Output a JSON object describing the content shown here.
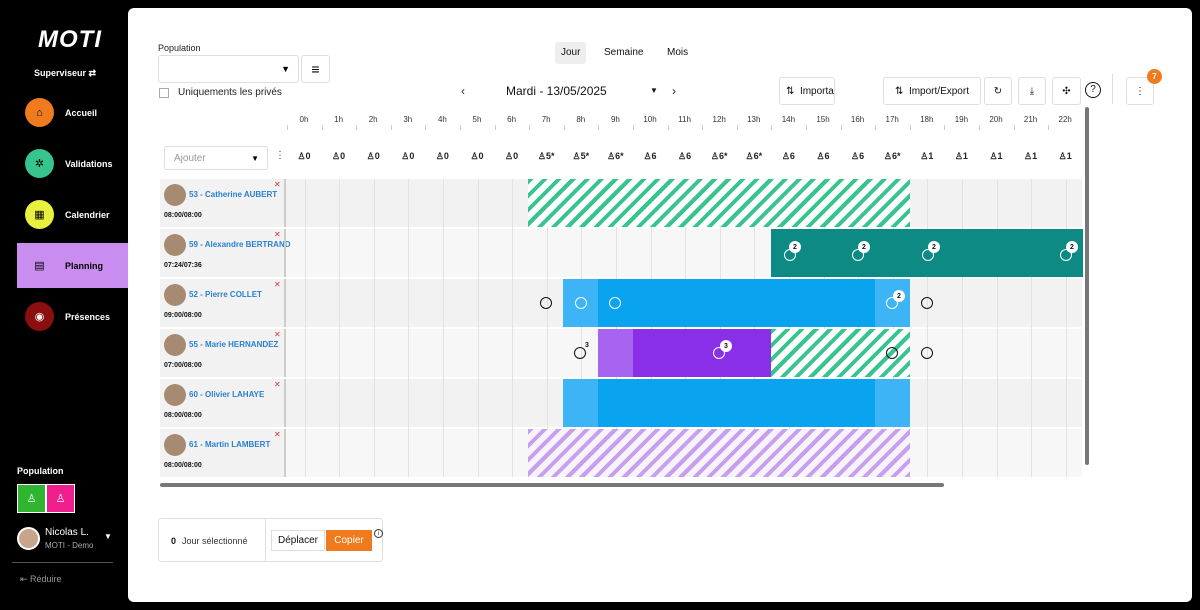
{
  "sidebar": {
    "logo": "MOTI",
    "role": "Superviseur",
    "items": [
      {
        "label": "Accueil",
        "color": "#f07b1f",
        "icon": "home-icon"
      },
      {
        "label": "Validations",
        "color": "#37c48f",
        "icon": "validations-icon"
      },
      {
        "label": "Calendrier",
        "color": "#e8f040",
        "icon": "calendar-icon"
      },
      {
        "label": "Planning",
        "color": "#c98df0",
        "icon": "planning-icon"
      },
      {
        "label": "Présences",
        "color": "#8b0f0f",
        "icon": "eye-icon"
      }
    ],
    "population_label": "Population",
    "user_name": "Nicolas L.",
    "user_org": "MOTI - Demo",
    "reduce_label": "Réduire"
  },
  "toolbar": {
    "population_label": "Population",
    "private_only_label": "Uniquements les privés",
    "views": [
      "Jour",
      "Semaine",
      "Mois"
    ],
    "date": "Mardi - 13/05/2025",
    "import_label": "Importa",
    "import_export_label": "Import/Export",
    "notification_count": "7",
    "add_placeholder": "Ajouter"
  },
  "hours": [
    "0h",
    "1h",
    "2h",
    "3h",
    "4h",
    "5h",
    "6h",
    "7h",
    "8h",
    "9h",
    "10h",
    "11h",
    "12h",
    "13h",
    "14h",
    "15h",
    "16h",
    "17h",
    "18h",
    "19h",
    "20h",
    "21h",
    "22h"
  ],
  "counts": [
    "0",
    "0",
    "0",
    "0",
    "0",
    "0",
    "0",
    "5*",
    "5*",
    "6*",
    "6",
    "6",
    "6*",
    "6*",
    "6",
    "6",
    "6",
    "6*",
    "1",
    "1",
    "1",
    "1",
    "1"
  ],
  "employees": [
    {
      "name": "53 - Catherine AUBERT",
      "time": "08:00/08:00"
    },
    {
      "name": "59 - Alexandre BERTRAND",
      "time": "07:24/07:36"
    },
    {
      "name": "52 - Pierre COLLET",
      "time": "09:00/08:00"
    },
    {
      "name": "55 - Marie HERNANDEZ",
      "time": "07:00/08:00"
    },
    {
      "name": "60 - Olivier LAHAYE",
      "time": "08:00/08:00"
    },
    {
      "name": "61 - Martin LAMBERT",
      "time": "08:00/08:00"
    }
  ],
  "badges": {
    "b1": "2",
    "b2": "2",
    "b3": "2",
    "b4": "2",
    "b5": "2",
    "b6": "3",
    "b7": "3"
  },
  "footer": {
    "count": "0",
    "selected_label": "Jour sélectionné",
    "move_label": "Déplacer",
    "copy_label": "Copier"
  },
  "colors": {
    "teal": "#0d8a84",
    "blue": "#0aa3f0",
    "light_blue": "#3cb4f5",
    "purple": "#8a2fe8",
    "light_purple": "#a764f0",
    "orange": "#f07b1f"
  }
}
